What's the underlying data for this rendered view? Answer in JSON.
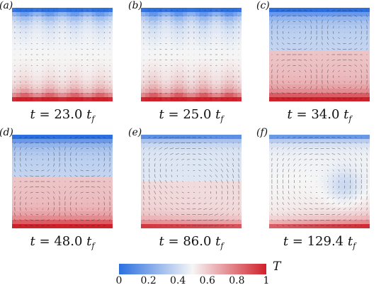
{
  "panels": [
    {
      "letter": "(a)",
      "time": "23.0",
      "mix": 0.15,
      "mode": "plumes"
    },
    {
      "letter": "(b)",
      "time": "25.0",
      "mix": 0.3,
      "mode": "plumes"
    },
    {
      "letter": "(c)",
      "time": "34.0",
      "mix": 0.55,
      "mode": "layers"
    },
    {
      "letter": "(d)",
      "time": "48.0",
      "mix": 0.7,
      "mode": "rolls"
    },
    {
      "letter": "(e)",
      "time": "86.0",
      "mix": 0.85,
      "mode": "cell"
    },
    {
      "letter": "(f)",
      "time": "129.4",
      "mix": 1.0,
      "mode": "bigcell"
    }
  ],
  "caption": {
    "t_symbol": "t",
    "equals": " = ",
    "unit_symbol": "t",
    "unit_sub": "f"
  },
  "colorbar": {
    "symbol": "T",
    "ticks": [
      "0",
      "0.2",
      "0.4",
      "0.6",
      "0.8",
      "1"
    ],
    "colors": {
      "cold": "#2b6fe0",
      "neutral": "#f6f6f6",
      "hot": "#d0202a"
    }
  }
}
